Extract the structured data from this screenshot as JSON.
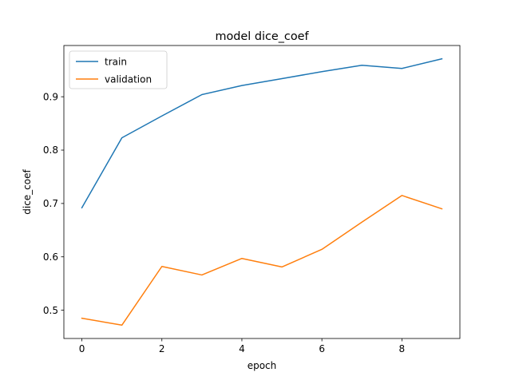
{
  "chart_data": {
    "type": "line",
    "title": "model dice_coef",
    "xlabel": "epoch",
    "ylabel": "dice_coef",
    "x": [
      0,
      1,
      2,
      3,
      4,
      5,
      6,
      7,
      8,
      9
    ],
    "series": [
      {
        "name": "train",
        "color": "#1f77b4",
        "values": [
          0.692,
          0.823,
          0.864,
          0.904,
          0.921,
          0.934,
          0.947,
          0.959,
          0.953,
          0.971
        ]
      },
      {
        "name": "validation",
        "color": "#ff7f0e",
        "values": [
          0.485,
          0.472,
          0.582,
          0.566,
          0.597,
          0.581,
          0.614,
          0.665,
          0.715,
          0.69
        ]
      }
    ],
    "xlim": [
      -0.45,
      9.45
    ],
    "ylim": [
      0.447,
      0.996
    ],
    "xticks": [
      0,
      2,
      4,
      6,
      8
    ],
    "yticks": [
      0.5,
      0.6,
      0.7,
      0.8,
      0.9
    ],
    "xtick_labels": [
      "0",
      "2",
      "4",
      "6",
      "8"
    ],
    "ytick_labels": [
      "0.5",
      "0.6",
      "0.7",
      "0.8",
      "0.9"
    ],
    "grid": false,
    "legend_position": "top-left"
  }
}
